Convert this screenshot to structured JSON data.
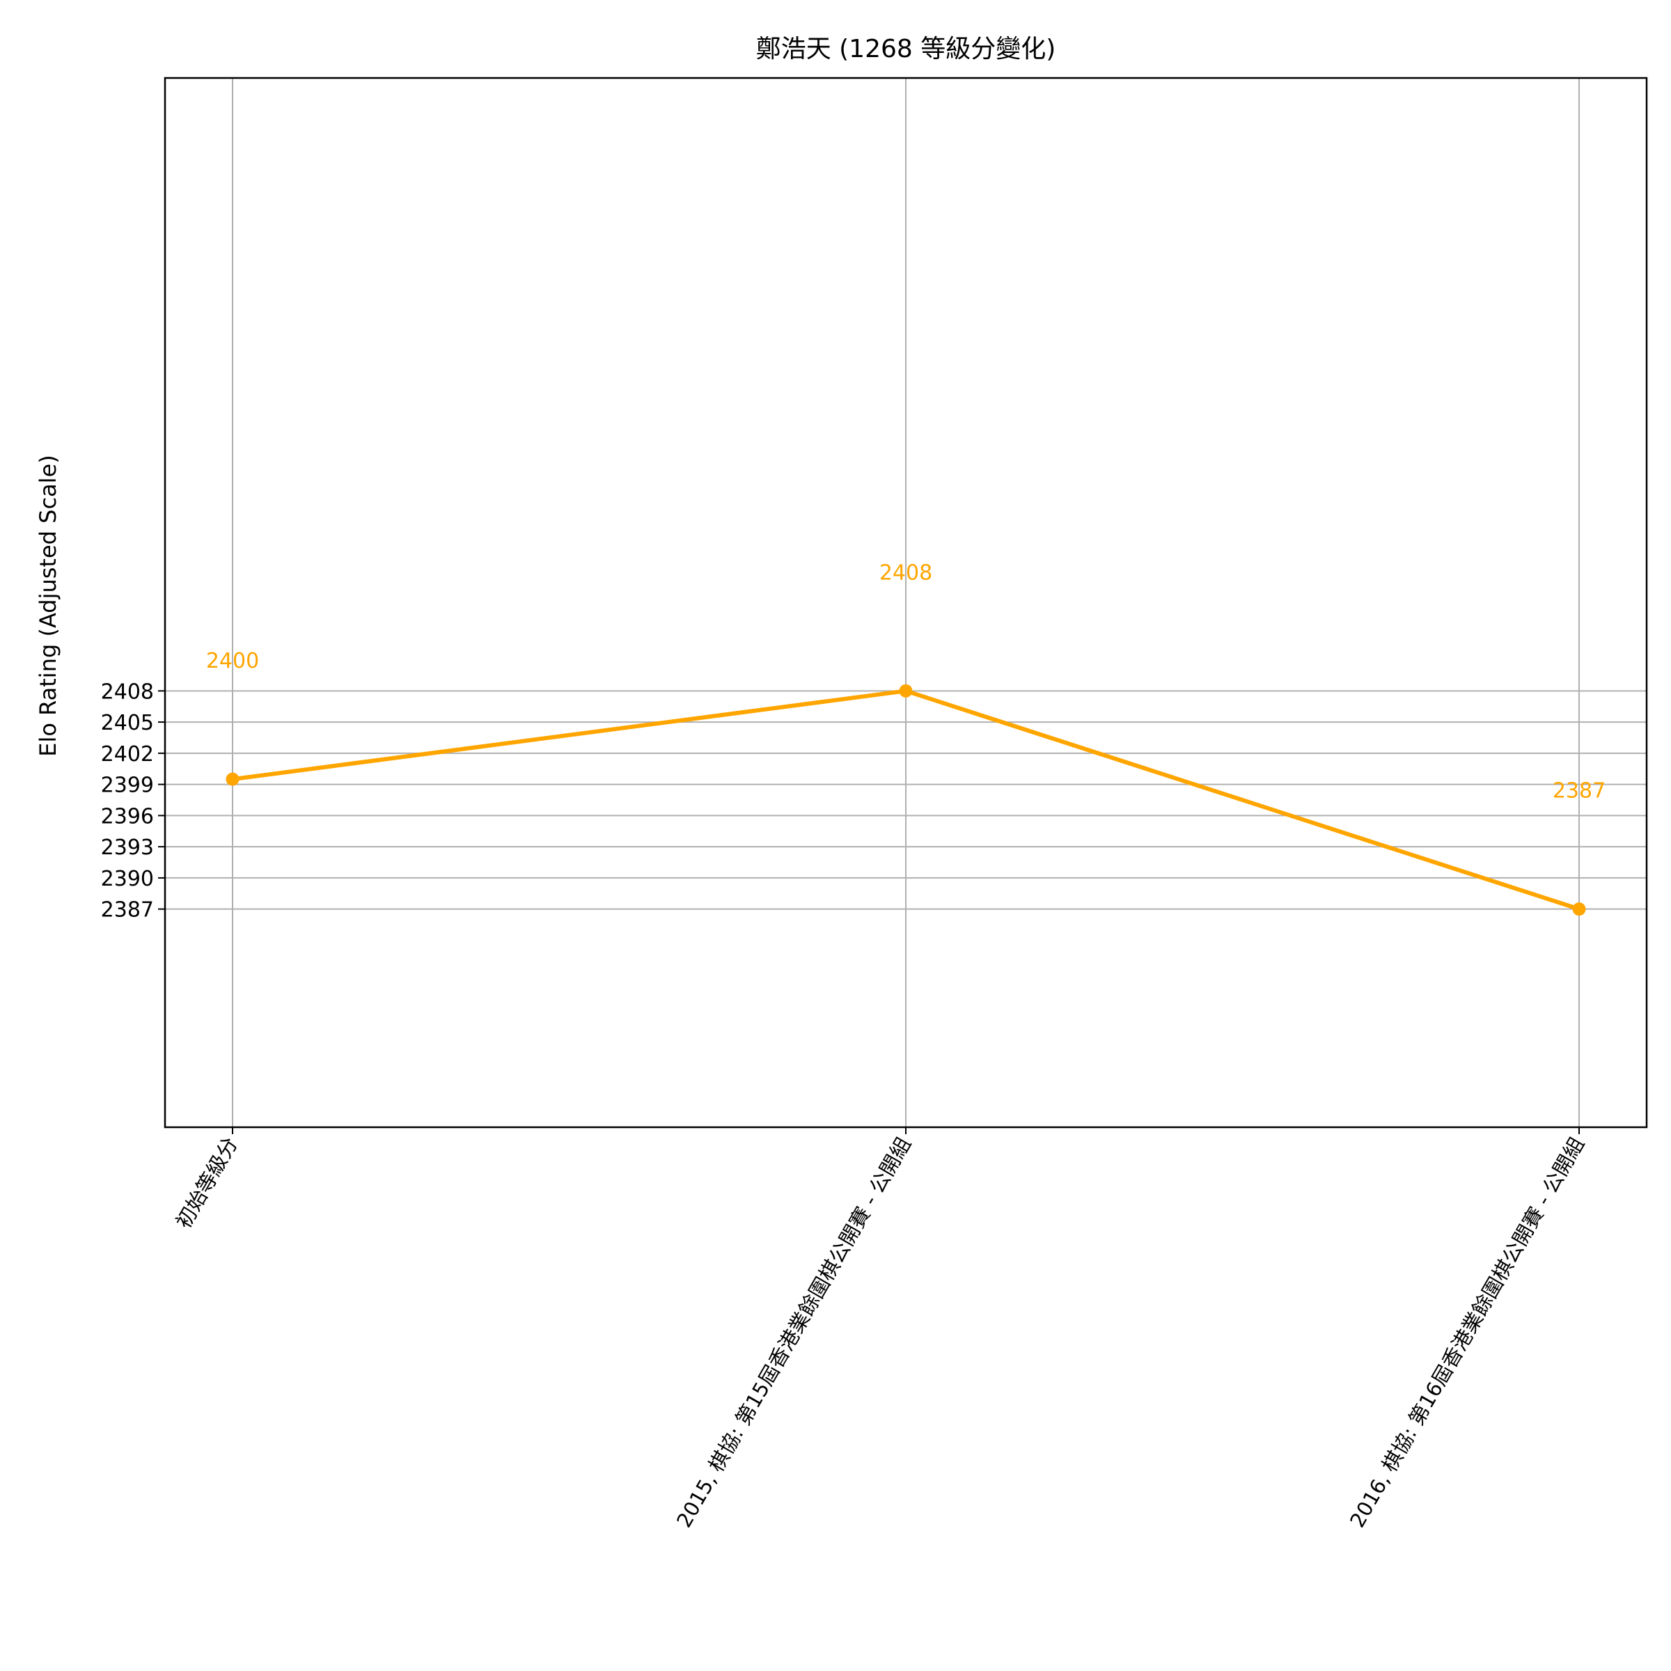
{
  "chart_data": {
    "type": "line",
    "title": "鄭浩天 (1268 等級分變化)",
    "xlabel": "",
    "ylabel": "Elo Rating (Adjusted Scale)",
    "categories": [
      "初始等級分",
      "2015, 棋協: 第15屆香港業餘圍棋公開賽 - 公開組",
      "2016, 棋協: 第16屆香港業餘圍棋公開賽 - 公開組"
    ],
    "series": [
      {
        "values": [
          2399.5,
          2408,
          2387
        ],
        "labels": [
          "2400",
          "2408",
          "2387"
        ],
        "color": "#FFA500"
      }
    ],
    "yticks": [
      2387,
      2390,
      2393,
      2396,
      2399,
      2402,
      2405,
      2408
    ],
    "ylim": [
      2366,
      2467
    ],
    "grid": true,
    "legend": "none"
  }
}
